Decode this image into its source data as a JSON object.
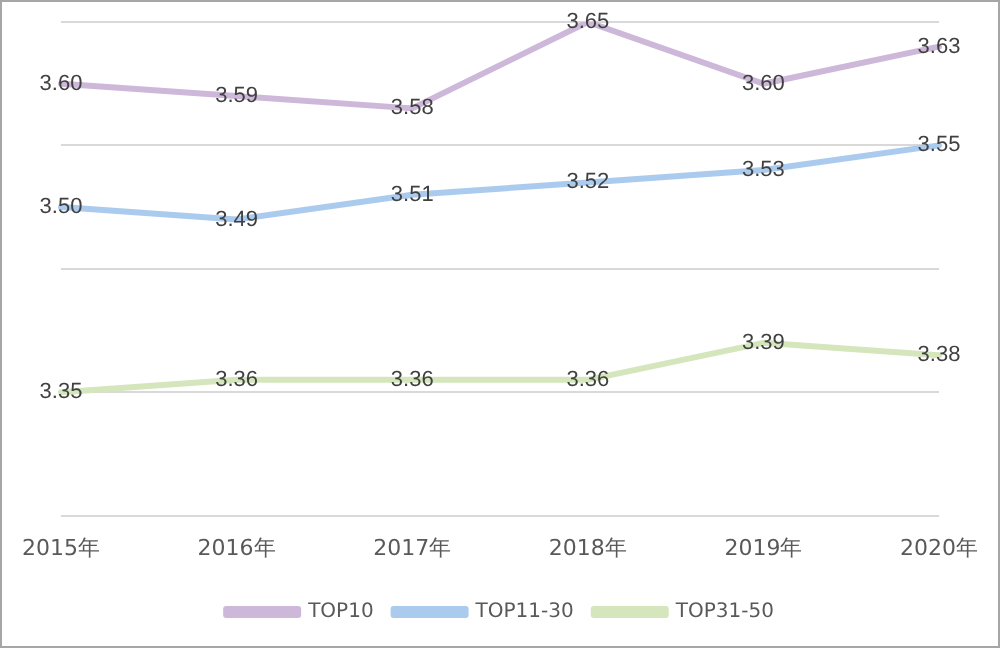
{
  "chart_data": {
    "type": "line",
    "categories": [
      "2015年",
      "2016年",
      "2017年",
      "2018年",
      "2019年",
      "2020年"
    ],
    "series": [
      {
        "name": "TOP10",
        "color": "#cdb8da",
        "values": [
          3.6,
          3.59,
          3.58,
          3.65,
          3.6,
          3.63
        ],
        "value_labels": [
          "3.60",
          "3.59",
          "3.58",
          "3.65",
          "3.60",
          "3.63"
        ]
      },
      {
        "name": "TOP11-30",
        "color": "#aacbee",
        "values": [
          3.5,
          3.49,
          3.51,
          3.52,
          3.53,
          3.55
        ],
        "value_labels": [
          "3.50",
          "3.49",
          "3.51",
          "3.52",
          "3.53",
          "3.55"
        ]
      },
      {
        "name": "TOP31-50",
        "color": "#d5e6bd",
        "values": [
          3.35,
          3.36,
          3.36,
          3.36,
          3.39,
          3.38
        ],
        "value_labels": [
          "3.35",
          "3.36",
          "3.36",
          "3.36",
          "3.39",
          "3.38"
        ]
      }
    ],
    "ylim": [
      3.25,
      3.65
    ],
    "yticks": [
      {
        "value": 3.25,
        "label": null
      },
      {
        "value": 3.35,
        "label": null
      },
      {
        "value": 3.45,
        "label": null
      },
      {
        "value": 3.55,
        "label": null
      },
      {
        "value": 3.65,
        "label": null
      }
    ],
    "tick_labels": "x",
    "grid": "y",
    "legend": "bottom",
    "marker": "none",
    "line_style": "solid"
  }
}
